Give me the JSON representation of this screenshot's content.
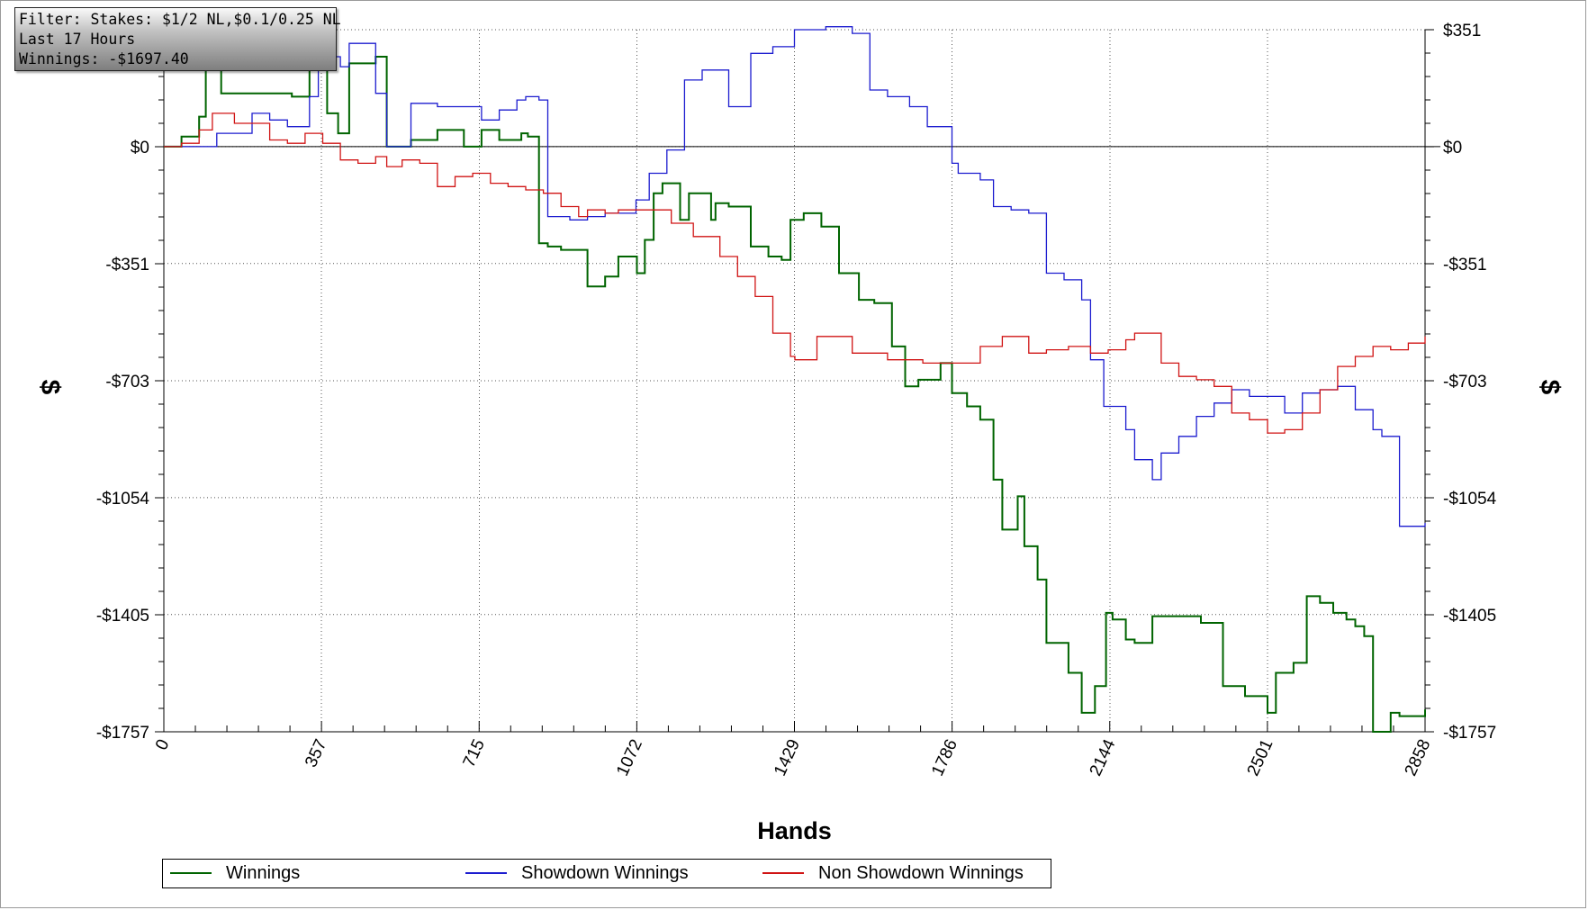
{
  "filter_box": {
    "line1": "Filter: Stakes: $1/2 NL,$0.1/0.25 NL",
    "line2": "Last 17 Hours",
    "line3": "Winnings: -$1697.40"
  },
  "chart_data": {
    "type": "line",
    "xlabel": "Hands",
    "ylabel_left": "$",
    "ylabel_right": "$",
    "xlim": [
      0,
      2858
    ],
    "ylim": [
      -1757,
      351
    ],
    "x_ticks": [
      0,
      357,
      715,
      1072,
      1429,
      1786,
      2144,
      2501,
      2858
    ],
    "y_ticks": [
      351,
      0,
      -351,
      -703,
      -1054,
      -1405,
      -1757
    ],
    "y_tick_labels": [
      "$351",
      "$0",
      "-$351",
      "-$703",
      "-$1054",
      "-$1405",
      "-$1757"
    ],
    "grid": true,
    "legend_position": "bottom",
    "series": [
      {
        "name": "Winnings",
        "color": "#006400",
        "x": [
          0,
          40,
          80,
          95,
          130,
          200,
          290,
          330,
          370,
          395,
          420,
          480,
          505,
          560,
          620,
          680,
          720,
          760,
          810,
          825,
          850,
          870,
          900,
          960,
          1000,
          1030,
          1072,
          1090,
          1110,
          1130,
          1170,
          1190,
          1240,
          1250,
          1280,
          1330,
          1370,
          1400,
          1420,
          1450,
          1490,
          1530,
          1575,
          1610,
          1650,
          1680,
          1710,
          1760,
          1786,
          1820,
          1850,
          1880,
          1900,
          1935,
          1950,
          1980,
          2000,
          2050,
          2080,
          2110,
          2135,
          2150,
          2180,
          2200,
          2240,
          2300,
          2350,
          2400,
          2450,
          2470,
          2501,
          2520,
          2560,
          2590,
          2620,
          2650,
          2680,
          2700,
          2720,
          2740,
          2780,
          2800,
          2858
        ],
        "y": [
          0,
          30,
          90,
          240,
          160,
          160,
          150,
          230,
          100,
          40,
          250,
          270,
          0,
          20,
          50,
          0,
          50,
          20,
          40,
          30,
          -290,
          -300,
          -310,
          -420,
          -390,
          -330,
          -380,
          -280,
          -140,
          -110,
          -220,
          -140,
          -220,
          -170,
          -180,
          -300,
          -330,
          -340,
          -220,
          -200,
          -240,
          -380,
          -460,
          -470,
          -600,
          -720,
          -700,
          -650,
          -740,
          -780,
          -820,
          -1000,
          -1150,
          -1050,
          -1200,
          -1300,
          -1490,
          -1580,
          -1700,
          -1620,
          -1400,
          -1420,
          -1480,
          -1490,
          -1410,
          -1410,
          -1430,
          -1620,
          -1650,
          -1650,
          -1700,
          -1580,
          -1550,
          -1350,
          -1370,
          -1400,
          -1420,
          -1440,
          -1470,
          -1757,
          -1700,
          -1710,
          -1690
        ]
      },
      {
        "name": "Showdown Winnings",
        "color": "#1c1ccf",
        "x": [
          0,
          80,
          120,
          200,
          240,
          280,
          330,
          350,
          380,
          400,
          420,
          480,
          505,
          560,
          620,
          680,
          720,
          760,
          800,
          820,
          850,
          870,
          920,
          960,
          1000,
          1040,
          1070,
          1100,
          1140,
          1180,
          1220,
          1280,
          1330,
          1380,
          1429,
          1500,
          1560,
          1600,
          1640,
          1690,
          1730,
          1786,
          1800,
          1850,
          1880,
          1920,
          1960,
          2000,
          2040,
          2080,
          2100,
          2130,
          2150,
          2180,
          2200,
          2240,
          2260,
          2300,
          2340,
          2380,
          2420,
          2460,
          2501,
          2540,
          2580,
          2620,
          2660,
          2700,
          2740,
          2760,
          2800,
          2858
        ],
        "y": [
          0,
          0,
          40,
          100,
          80,
          60,
          150,
          240,
          270,
          240,
          310,
          160,
          0,
          130,
          120,
          120,
          80,
          110,
          140,
          150,
          140,
          -210,
          -220,
          -210,
          -200,
          -200,
          -160,
          -80,
          -10,
          200,
          230,
          120,
          280,
          300,
          351,
          360,
          340,
          170,
          150,
          120,
          60,
          -50,
          -80,
          -100,
          -180,
          -190,
          -200,
          -380,
          -400,
          -460,
          -640,
          -780,
          -780,
          -850,
          -940,
          -1000,
          -920,
          -870,
          -810,
          -770,
          -730,
          -750,
          -750,
          -800,
          -740,
          -730,
          -720,
          -790,
          -850,
          -870,
          -1140,
          -1130
        ]
      },
      {
        "name": "Non Showdown Winnings",
        "color": "#d01414",
        "x": [
          0,
          40,
          80,
          110,
          160,
          200,
          240,
          280,
          320,
          360,
          400,
          440,
          480,
          505,
          540,
          580,
          620,
          660,
          700,
          740,
          780,
          820,
          860,
          900,
          940,
          960,
          1000,
          1030,
          1072,
          1110,
          1150,
          1200,
          1260,
          1300,
          1340,
          1380,
          1420,
          1430,
          1480,
          1560,
          1640,
          1720,
          1786,
          1850,
          1900,
          1960,
          2000,
          2050,
          2100,
          2140,
          2180,
          2200,
          2260,
          2300,
          2340,
          2380,
          2420,
          2460,
          2501,
          2540,
          2580,
          2620,
          2660,
          2700,
          2740,
          2780,
          2820,
          2858
        ],
        "y": [
          0,
          10,
          50,
          100,
          70,
          70,
          20,
          10,
          40,
          10,
          -40,
          -50,
          -30,
          -60,
          -40,
          -50,
          -120,
          -90,
          -80,
          -110,
          -120,
          -130,
          -140,
          -180,
          -210,
          -190,
          -200,
          -190,
          -190,
          -190,
          -230,
          -270,
          -330,
          -390,
          -450,
          -560,
          -630,
          -640,
          -570,
          -620,
          -640,
          -650,
          -650,
          -600,
          -570,
          -620,
          -610,
          -600,
          -620,
          -610,
          -580,
          -560,
          -650,
          -690,
          -700,
          -720,
          -800,
          -820,
          -860,
          -850,
          -800,
          -730,
          -660,
          -630,
          -600,
          -610,
          -590,
          -570
        ]
      }
    ]
  }
}
